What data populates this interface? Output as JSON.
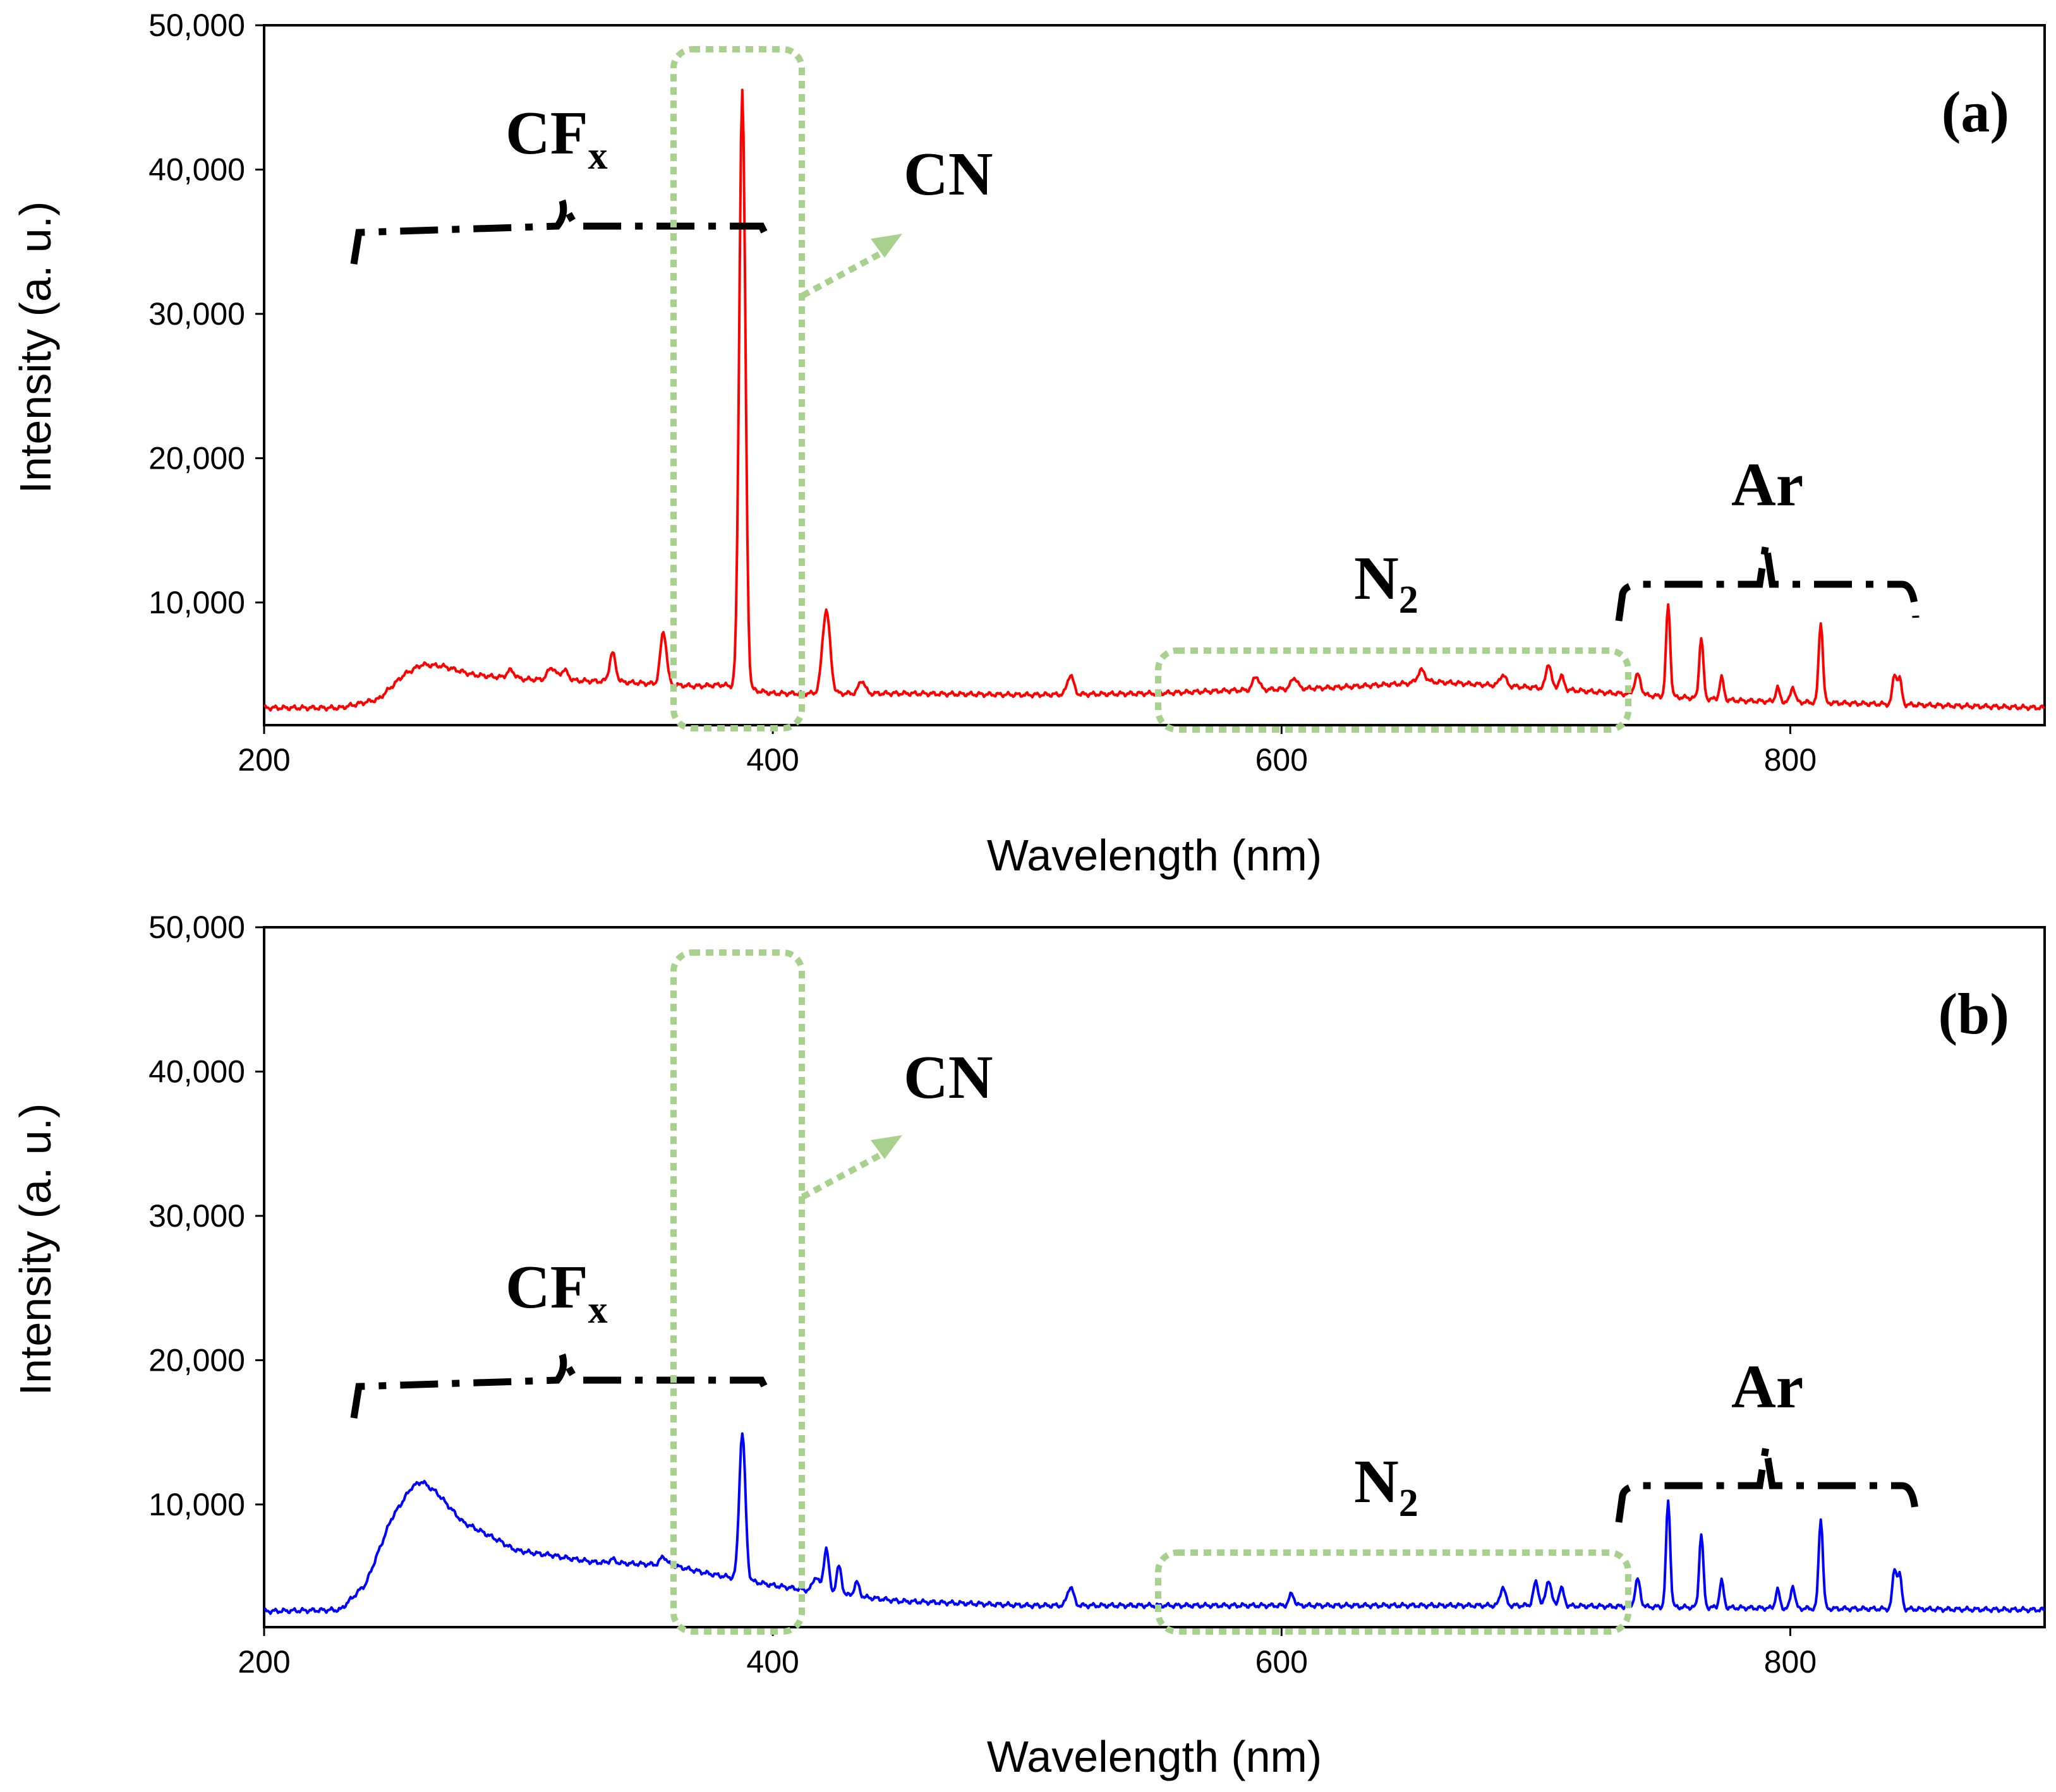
{
  "chart_data": [
    {
      "type": "line",
      "panel_label": "(a)",
      "color": "#ff0000",
      "xlabel": "Wavelength (nm)",
      "ylabel": "Intensity (a. u.)",
      "xlim": [
        200,
        900
      ],
      "ylim": [
        1500,
        50000
      ],
      "xticks": [
        200,
        400,
        600,
        800
      ],
      "xtick_labels": [
        "200",
        "400",
        "600",
        "800"
      ],
      "yticks": [
        10000,
        20000,
        30000,
        40000,
        50000
      ],
      "ytick_labels": [
        "10,000",
        "20,000",
        "30,000",
        "40,000",
        "50,000"
      ],
      "baseline": [
        [
          200,
          2700
        ],
        [
          230,
          2700
        ],
        [
          245,
          3300
        ],
        [
          255,
          5000
        ],
        [
          262,
          5700
        ],
        [
          270,
          5600
        ],
        [
          282,
          5000
        ],
        [
          300,
          4700
        ],
        [
          340,
          4500
        ],
        [
          370,
          4200
        ],
        [
          380,
          4300
        ],
        [
          400,
          3700
        ],
        [
          450,
          3700
        ],
        [
          500,
          3600
        ],
        [
          550,
          3700
        ],
        [
          580,
          3900
        ],
        [
          620,
          4100
        ],
        [
          660,
          4500
        ],
        [
          700,
          4100
        ],
        [
          740,
          3600
        ],
        [
          780,
          3200
        ],
        [
          850,
          2900
        ],
        [
          900,
          2700
        ]
      ],
      "peaks": [
        [
          297,
          5300,
          1.5
        ],
        [
          313,
          5500,
          1.5
        ],
        [
          318,
          5300,
          1.5
        ],
        [
          337,
          6500,
          1.2
        ],
        [
          357,
          8000,
          1.2
        ],
        [
          388,
          45600,
          1.2
        ],
        [
          421,
          9500,
          1.5
        ],
        [
          435,
          4600,
          1.2
        ],
        [
          517,
          5000,
          1.2
        ],
        [
          590,
          4900,
          1.2
        ],
        [
          605,
          4800,
          1.2
        ],
        [
          655,
          5300,
          1.5
        ],
        [
          687,
          5000,
          1.2
        ],
        [
          705,
          5800,
          1.0
        ],
        [
          710,
          4900,
          1.0
        ],
        [
          740,
          5000,
          1.2
        ],
        [
          752,
          9900,
          0.8
        ],
        [
          765,
          7600,
          0.8
        ],
        [
          773,
          4800,
          0.8
        ],
        [
          795,
          4100,
          0.8
        ],
        [
          801,
          4200,
          0.8
        ],
        [
          812,
          8700,
          0.8
        ],
        [
          841,
          5000,
          0.8
        ],
        [
          843,
          4700,
          0.8
        ]
      ],
      "annotations": {
        "cfx": {
          "main": "CF",
          "sub": "x"
        },
        "cn": "CN",
        "n2": {
          "main": "N",
          "sub": "2"
        },
        "ar": "Ar"
      }
    },
    {
      "type": "line",
      "panel_label": "(b)",
      "color": "#0000ff",
      "xlabel": "Wavelength (nm)",
      "ylabel": "Intensity (a. u.)",
      "xlim": [
        200,
        900
      ],
      "ylim": [
        1500,
        50000
      ],
      "xticks": [
        200,
        400,
        600,
        800
      ],
      "xtick_labels": [
        "200",
        "400",
        "600",
        "800"
      ],
      "yticks": [
        10000,
        20000,
        30000,
        40000,
        50000
      ],
      "ytick_labels": [
        "10,000",
        "20,000",
        "30,000",
        "40,000",
        "50,000"
      ],
      "baseline": [
        [
          200,
          2600
        ],
        [
          230,
          2700
        ],
        [
          240,
          4500
        ],
        [
          250,
          9000
        ],
        [
          258,
          11200
        ],
        [
          262,
          11600
        ],
        [
          268,
          10800
        ],
        [
          278,
          8800
        ],
        [
          300,
          6800
        ],
        [
          330,
          6000
        ],
        [
          360,
          5800
        ],
        [
          375,
          5200
        ],
        [
          385,
          4900
        ],
        [
          400,
          4400
        ],
        [
          420,
          3900
        ],
        [
          450,
          3300
        ],
        [
          500,
          3000
        ],
        [
          550,
          3000
        ],
        [
          600,
          3000
        ],
        [
          700,
          3000
        ],
        [
          750,
          2900
        ],
        [
          800,
          2800
        ],
        [
          900,
          2700
        ]
      ],
      "peaks": [
        [
          297,
          7000,
          1.5
        ],
        [
          313,
          6500,
          1.5
        ],
        [
          337,
          6200,
          1.2
        ],
        [
          357,
          6400,
          1.2
        ],
        [
          388,
          15000,
          1.2
        ],
        [
          417,
          5000,
          1.2
        ],
        [
          421,
          7000,
          1.0
        ],
        [
          426,
          5700,
          1.0
        ],
        [
          433,
          4600,
          1.0
        ],
        [
          517,
          4300,
          1.2
        ],
        [
          604,
          3800,
          1.0
        ],
        [
          687,
          4300,
          1.0
        ],
        [
          700,
          4600,
          1.0
        ],
        [
          705,
          4800,
          1.0
        ],
        [
          710,
          4200,
          1.0
        ],
        [
          740,
          4800,
          1.0
        ],
        [
          752,
          10300,
          0.8
        ],
        [
          765,
          8000,
          0.8
        ],
        [
          773,
          4700,
          0.8
        ],
        [
          795,
          4100,
          0.8
        ],
        [
          801,
          4400,
          0.8
        ],
        [
          812,
          9100,
          0.8
        ],
        [
          841,
          5500,
          0.8
        ],
        [
          843,
          5100,
          0.8
        ]
      ],
      "annotations": {
        "cfx": {
          "main": "CF",
          "sub": "x"
        },
        "cn": "CN",
        "n2": {
          "main": "N",
          "sub": "2"
        },
        "ar": "Ar"
      }
    }
  ]
}
